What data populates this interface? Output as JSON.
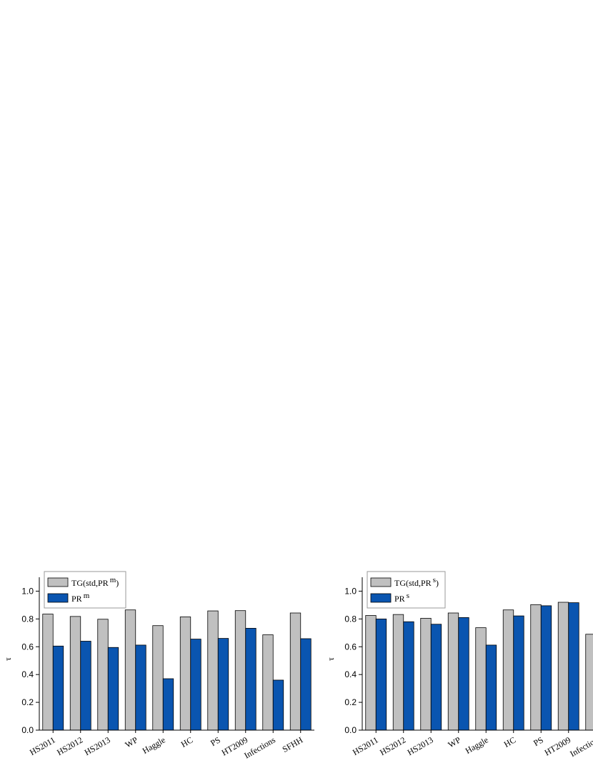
{
  "chart_data": [
    {
      "type": "bar",
      "y_label": "τ",
      "categories": [
        "HS2011",
        "HS2012",
        "HS2013",
        "WP",
        "Haggle",
        "HC",
        "PS",
        "HT2009",
        "Infections",
        "SFHH"
      ],
      "series": [
        {
          "name": "TG(std,PR",
          "name_sup": "m",
          "name_end": ")",
          "color": "#c0c0c0",
          "values": [
            0.835,
            0.818,
            0.798,
            0.865,
            0.752,
            0.815,
            0.858,
            0.86,
            0.686,
            0.843
          ]
        },
        {
          "name": "PR",
          "name_sup": "m",
          "color": "#0a55b0",
          "values": [
            0.605,
            0.64,
            0.595,
            0.612,
            0.37,
            0.655,
            0.66,
            0.733,
            0.36,
            0.658
          ]
        }
      ],
      "ylim": [
        0,
        1.1
      ],
      "yticks": [
        {
          "value": 0,
          "label": "0.0"
        },
        {
          "value": 0.2,
          "label": "0.2"
        },
        {
          "value": 0.4,
          "label": "0.4"
        },
        {
          "value": 0.6,
          "label": "0.6"
        },
        {
          "value": 0.8,
          "label": "0.8"
        },
        {
          "value": 1,
          "label": "1.0"
        }
      ],
      "legend": "upper left"
    },
    {
      "type": "bar",
      "y_label": "τ",
      "categories": [
        "HS2011",
        "HS2012",
        "HS2013",
        "WP",
        "Haggle",
        "HC",
        "PS",
        "HT2009",
        "Infection"
      ],
      "series": [
        {
          "name": "TG(std,PR",
          "name_sup": "s",
          "name_end": ")",
          "color": "#c0c0c0",
          "values": [
            0.825,
            0.832,
            0.805,
            0.843,
            0.737,
            0.865,
            0.903,
            0.92,
            0.69
          ]
        },
        {
          "name": "PR",
          "name_sup": "s",
          "color": "#0a55b0",
          "values": [
            0.8,
            0.78,
            0.762,
            0.81,
            0.612,
            0.822,
            0.895,
            0.917,
            null
          ]
        }
      ],
      "ylim": [
        0,
        1.1
      ],
      "yticks": [
        {
          "value": 0,
          "label": "0.0"
        },
        {
          "value": 0.2,
          "label": "0.2"
        },
        {
          "value": 0.4,
          "label": "0.4"
        },
        {
          "value": 0.6,
          "label": "0.6"
        },
        {
          "value": 0.8,
          "label": "0.8"
        },
        {
          "value": 1,
          "label": "1.0"
        }
      ],
      "legend": "upper left"
    }
  ]
}
